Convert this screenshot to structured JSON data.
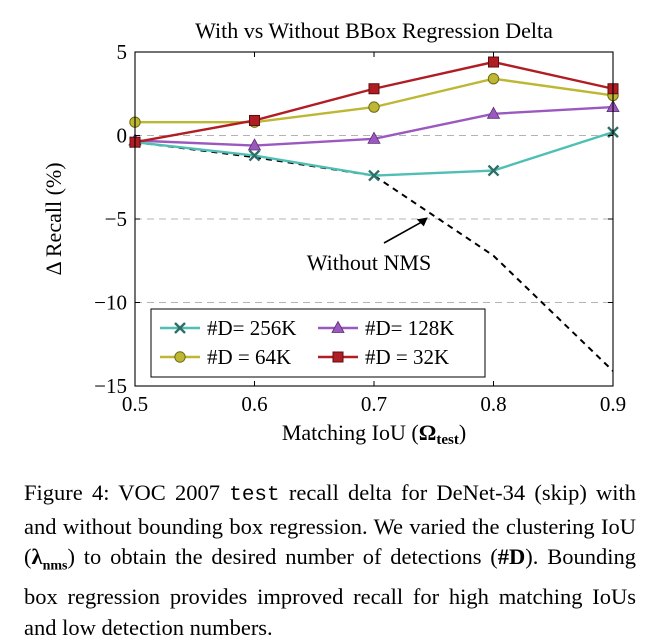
{
  "chart_data": {
    "type": "line",
    "title": "With vs Without BBox Regression Delta",
    "xlabel": "Matching IoU",
    "xlabel_symbol": "Ω",
    "xlabel_symbol_sub": "test",
    "ylabel": "Δ Recall (%)",
    "xlim": [
      0.5,
      0.9
    ],
    "ylim": [
      -15,
      5
    ],
    "xticks": [
      "0.5",
      "0.6",
      "0.7",
      "0.8",
      "0.9"
    ],
    "yticks": [
      "5",
      "0",
      "−5",
      "−10",
      "−15"
    ],
    "ytick_values": [
      5,
      0,
      -5,
      -10,
      -15
    ],
    "xtick_values": [
      0.5,
      0.6,
      0.7,
      0.8,
      0.9
    ],
    "grid": "horizontal dashed at y = 0, -5, -10",
    "legend_position": "lower-left",
    "x": [
      0.5,
      0.6,
      0.7,
      0.8,
      0.9
    ],
    "series": [
      {
        "name": "#D= 256K",
        "marker": "x",
        "color": "#4fbfb4",
        "values": [
          -0.4,
          -1.2,
          -2.4,
          -2.1,
          0.2
        ]
      },
      {
        "name": "#D= 128K",
        "marker": "triangle",
        "color": "#9b59c0",
        "values": [
          -0.3,
          -0.6,
          -0.2,
          1.3,
          1.7
        ]
      },
      {
        "name": "#D = 64K",
        "marker": "circle",
        "color": "#bdb733",
        "values": [
          0.8,
          0.8,
          1.7,
          3.4,
          2.4
        ]
      },
      {
        "name": "#D = 32K",
        "marker": "square",
        "color": "#b01e23",
        "values": [
          -0.4,
          0.9,
          2.8,
          4.4,
          2.8
        ]
      }
    ],
    "nms_line": {
      "x": [
        0.5,
        0.6,
        0.7,
        0.8,
        0.9
      ],
      "values": [
        -0.4,
        -1.3,
        -2.4,
        -7.2,
        -14.1
      ],
      "color": "#000000",
      "style": "dashed"
    },
    "annotation": {
      "text": "Without NMS",
      "arrow_to": [
        0.745,
        -4.9
      ]
    }
  },
  "caption": {
    "figure_label": "Figure 4:",
    "t1": "VOC 2007",
    "code": "test",
    "t2": "recall delta for DeNet-34 (skip) with and without bounding box regression.  We varied the clustering IoU (",
    "lambda_symbol": "λ",
    "lambda_sub": "nms",
    "t3": ") to obtain the desired number of detections (",
    "d_bold": "#D",
    "t4": "). Bounding box regression provides improved recall for high matching IoUs and low detection numbers."
  }
}
